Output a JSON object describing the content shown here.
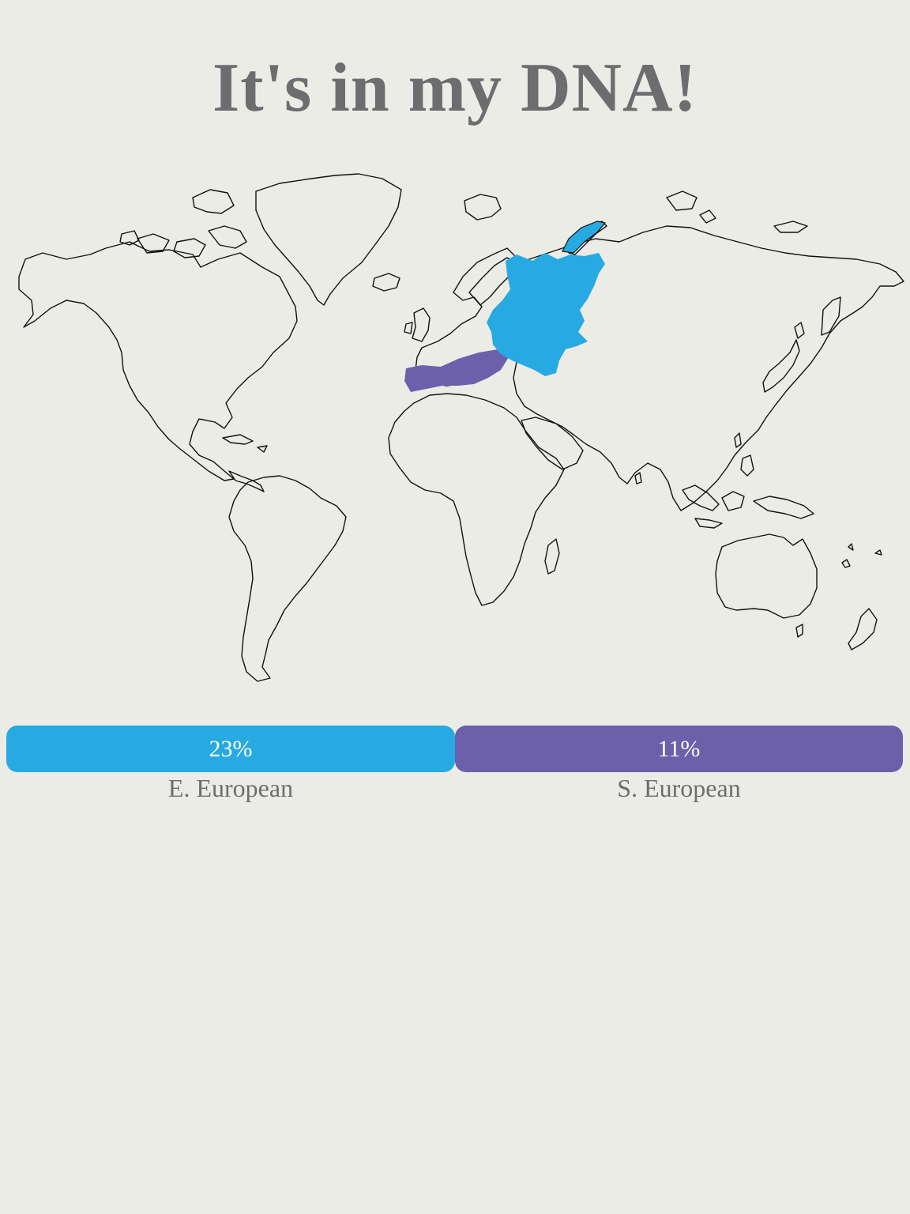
{
  "page": {
    "title": "It's in my DNA!"
  },
  "colors": {
    "background": "#ecece6",
    "title": "#6c6d6f",
    "e_european": "#27a9e1",
    "s_european": "#6d60ab"
  },
  "regions": [
    {
      "label": "E. European",
      "percent": "23%",
      "color": "#27a9e1"
    },
    {
      "label": "S. European",
      "percent": "11%",
      "color": "#6d60ab"
    }
  ]
}
